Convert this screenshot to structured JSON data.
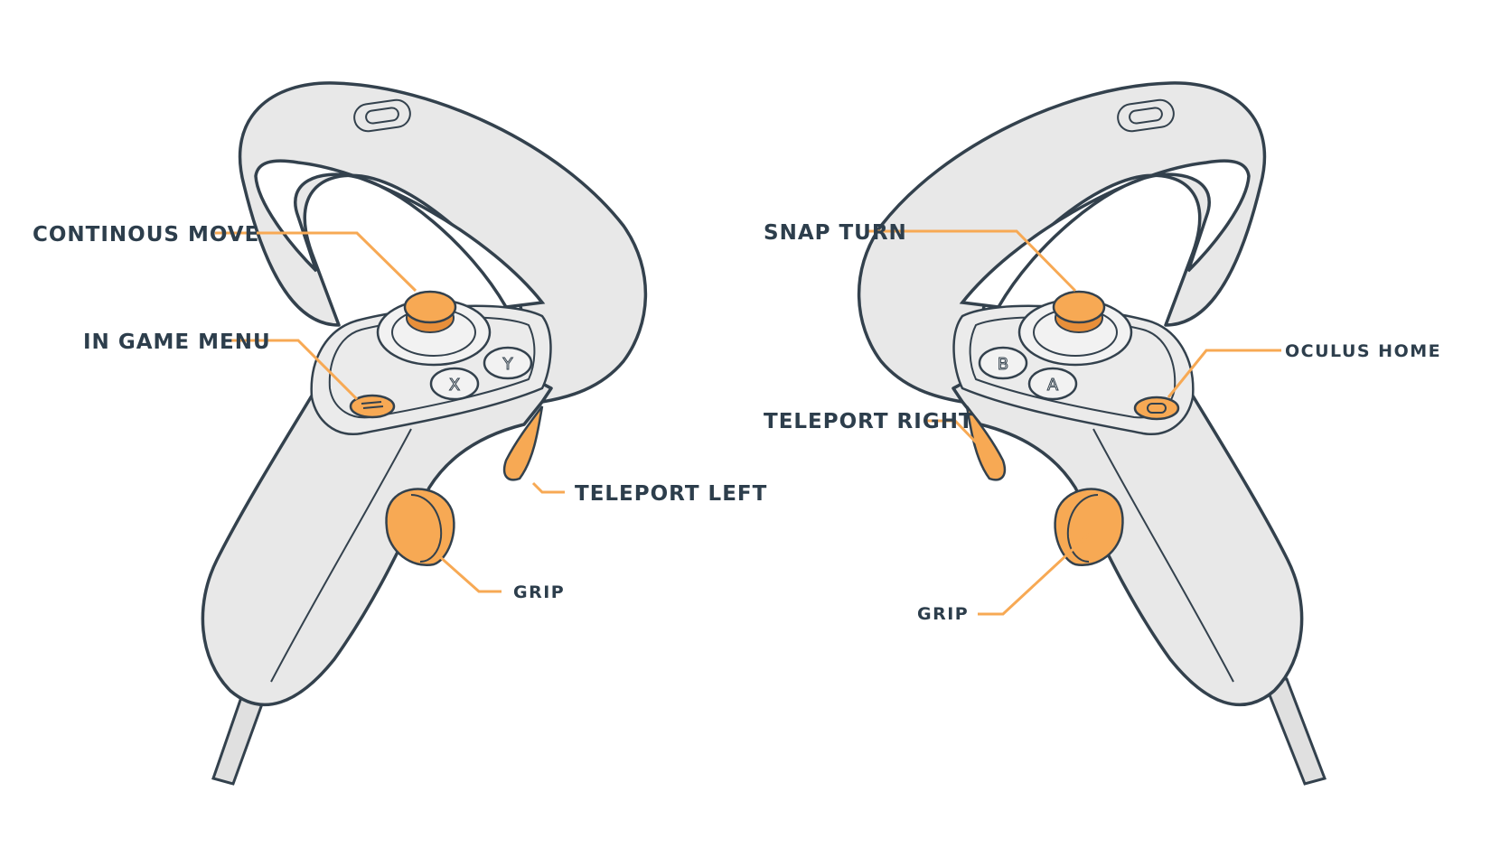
{
  "left_controller": {
    "labels": {
      "continuous_move": "CONTINOUS MOVE",
      "in_game_menu": "IN GAME MENU",
      "teleport_left": "TELEPORT LEFT",
      "grip": "GRIP"
    },
    "buttons": {
      "x": "X",
      "y": "Y"
    }
  },
  "right_controller": {
    "labels": {
      "snap_turn": "SNAP TURN",
      "oculus_home": "OCULUS HOME",
      "teleport_right": "TELEPORT RIGHT",
      "grip": "GRIP"
    },
    "buttons": {
      "b": "B",
      "a": "A"
    }
  },
  "colors": {
    "highlight": "#f7a954",
    "outline": "#33414d",
    "body": "#e8e8e8",
    "label_text": "#2d3e4c"
  }
}
